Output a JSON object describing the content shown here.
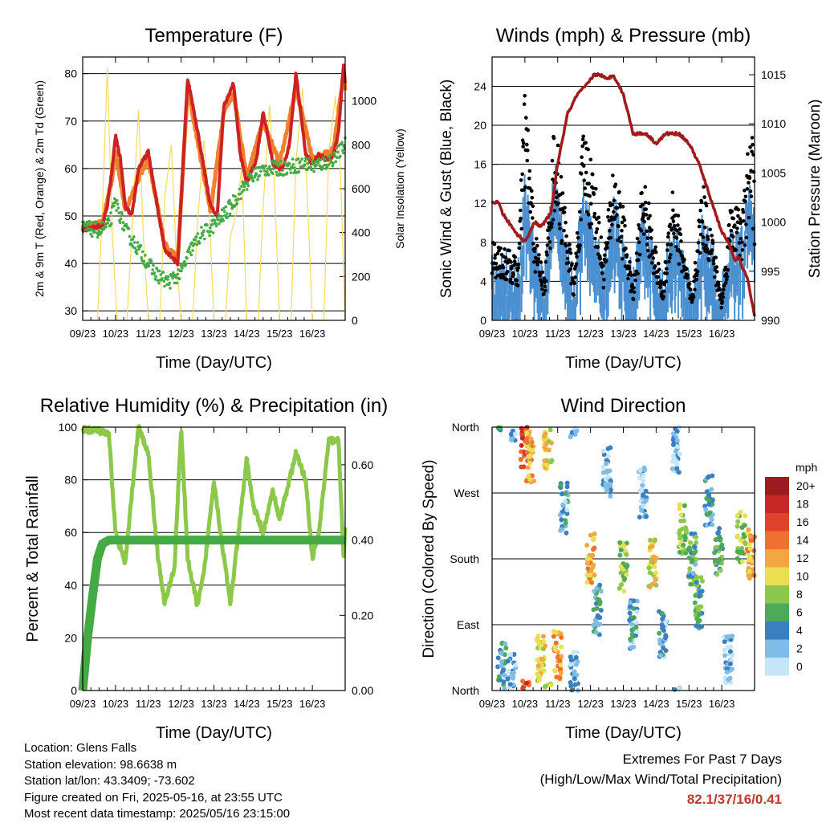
{
  "common": {
    "x_ticks": [
      "09/23",
      "10/23",
      "11/23",
      "12/23",
      "13/23",
      "14/23",
      "15/23",
      "16/23"
    ],
    "xlabel": "Time (Day/UTC)"
  },
  "chart_data": [
    {
      "id": "temperature",
      "type": "line",
      "title": "Temperature (F)",
      "xlabel": "Time (Day/UTC)",
      "ylabel": "2m & 9m T (Red, Orange) & 2m Td (Green)",
      "ylabel_right": "Solar Insolation (Yellow)",
      "ylim": [
        28,
        83.5
      ],
      "yticks": [
        30,
        40,
        50,
        60,
        70,
        80
      ],
      "ylim_right": [
        0,
        1200
      ],
      "yticks_right": [
        0,
        200,
        400,
        600,
        800,
        1000
      ],
      "x_unit": "days since 09/23",
      "series": [
        {
          "name": "2m T",
          "color": "#cc2222",
          "x": [
            0,
            0.3,
            0.6,
            0.75,
            0.9,
            1.0,
            1.15,
            1.3,
            1.5,
            1.7,
            2.0,
            2.2,
            2.5,
            2.9,
            3.05,
            3.2,
            3.5,
            3.9,
            4.1,
            4.3,
            4.6,
            4.8,
            5.0,
            5.3,
            5.5,
            5.8,
            6.0,
            6.1,
            6.3,
            6.5,
            6.8,
            7.0,
            7.2,
            7.4,
            7.55,
            7.65,
            7.8,
            7.95,
            8.0
          ],
          "y": [
            47,
            47.5,
            48,
            52,
            60,
            67,
            62,
            52,
            50,
            60,
            63.5,
            55,
            43,
            40,
            60,
            79,
            68,
            52,
            50,
            73,
            78,
            63,
            57,
            62,
            72,
            61,
            60,
            60,
            65,
            80,
            63,
            61,
            63,
            62,
            62,
            63,
            68,
            82,
            78
          ]
        },
        {
          "name": "9m T",
          "color": "#f08030",
          "x": [
            0,
            0.6,
            0.9,
            1.0,
            1.3,
            1.7,
            2.0,
            2.5,
            2.9,
            3.2,
            3.9,
            4.3,
            4.6,
            5.0,
            5.5,
            6.0,
            6.5,
            7.0,
            7.65,
            7.95,
            8.0
          ],
          "y": [
            47.5,
            48.5,
            58,
            64,
            51,
            58,
            62,
            44,
            41,
            77,
            51,
            72,
            76,
            58,
            70,
            61,
            77,
            62,
            64,
            80,
            77
          ]
        },
        {
          "name": "2m Td",
          "color": "#44aa44",
          "x": [
            0,
            0.5,
            0.8,
            1.0,
            1.3,
            1.6,
            1.8,
            2.0,
            2.2,
            2.4,
            2.6,
            2.8,
            3.0,
            3.3,
            3.6,
            4.0,
            4.4,
            4.8,
            5.0,
            5.3,
            5.6,
            6.0,
            6.4,
            6.8,
            7.0,
            7.3,
            7.6,
            7.9,
            8.0
          ],
          "y": [
            47.5,
            47,
            48,
            53,
            47,
            44,
            42,
            40,
            38,
            37,
            36,
            37,
            38,
            43,
            46,
            48,
            51,
            55,
            57,
            59,
            60,
            60,
            60.5,
            61,
            60.5,
            61,
            62,
            64,
            65
          ]
        },
        {
          "name": "Solar Insolation",
          "color": "#f5dc5a",
          "axis": "right",
          "x": [
            0.45,
            0.6,
            0.75,
            0.9,
            1.05,
            1.35,
            1.5,
            1.7,
            1.85,
            2.0,
            2.35,
            2.5,
            2.7,
            2.85,
            3.0,
            3.35,
            3.5,
            3.7,
            3.85,
            4.0,
            4.35,
            4.5,
            4.7,
            4.85,
            5.0,
            5.35,
            5.5,
            5.7,
            5.85,
            6.0,
            6.35,
            6.5,
            6.7,
            6.85,
            7.0,
            7.35,
            7.5,
            7.7,
            7.85,
            8.0
          ],
          "y": [
            0,
            500,
            1150,
            400,
            0,
            0,
            400,
            960,
            380,
            0,
            0,
            560,
            800,
            300,
            0,
            0,
            450,
            820,
            520,
            0,
            0,
            380,
            500,
            700,
            0,
            0,
            520,
            980,
            600,
            0,
            0,
            720,
            1060,
            560,
            0,
            0,
            760,
            1020,
            700,
            0
          ]
        }
      ]
    },
    {
      "id": "winds",
      "type": "scatter",
      "title": "Winds (mph) & Pressure (mb)",
      "xlabel": "Time (Day/UTC)",
      "ylabel": "Sonic Wind & Gust (Blue, Black)",
      "ylabel_right": "Station Pressure (Maroon)",
      "ylim": [
        0,
        27
      ],
      "yticks": [
        0,
        4,
        8,
        12,
        16,
        20,
        24
      ],
      "ylim_right": [
        990,
        1016.8
      ],
      "yticks_right": [
        990,
        995,
        1000,
        1005,
        1010,
        1015
      ],
      "x_unit": "days since 09/23",
      "series": [
        {
          "name": "Sonic Wind",
          "color": "#4a90d0",
          "x": [
            0,
            0.5,
            0.8,
            1.0,
            1.3,
            1.6,
            1.9,
            2.2,
            2.5,
            2.8,
            3.1,
            3.4,
            3.7,
            4.0,
            4.3,
            4.6,
            4.9,
            5.2,
            5.5,
            5.8,
            6.1,
            6.4,
            6.7,
            7.0,
            7.3,
            7.6,
            7.9,
            8.0
          ],
          "y": [
            4,
            4,
            3,
            12,
            5,
            2,
            14,
            7,
            2,
            12,
            8,
            3,
            10,
            6,
            2,
            9,
            5,
            2,
            8,
            4,
            1,
            8,
            5,
            1,
            7,
            6,
            12,
            8
          ]
        },
        {
          "name": "Gust",
          "color": "#000000",
          "x": [
            0,
            0.5,
            0.8,
            1.0,
            1.3,
            1.6,
            1.9,
            2.2,
            2.5,
            2.8,
            3.1,
            3.4,
            3.7,
            4.0,
            4.3,
            4.6,
            4.9,
            5.2,
            5.5,
            5.8,
            6.1,
            6.4,
            6.7,
            7.0,
            7.3,
            7.6,
            7.9,
            8.0
          ],
          "y": [
            8,
            7,
            6,
            24,
            9,
            4,
            20,
            12,
            4,
            20,
            15,
            6,
            16,
            11,
            3,
            15,
            9,
            3,
            14,
            8,
            2,
            14,
            9,
            2,
            13,
            10,
            20,
            14
          ]
        },
        {
          "name": "Station Pressure",
          "color": "#a01c1c",
          "axis": "right",
          "x": [
            0,
            0.2,
            0.3,
            0.7,
            1.0,
            1.3,
            1.5,
            1.8,
            2.0,
            2.3,
            2.6,
            2.9,
            3.1,
            3.3,
            3.5,
            3.7,
            4.0,
            4.3,
            4.7,
            5.0,
            5.3,
            5.7,
            6.0,
            6.3,
            6.6,
            6.8,
            7.0,
            7.2,
            7.4,
            7.5,
            7.8,
            8.0
          ],
          "y": [
            1002,
            1002,
            1001,
            999,
            998,
            1000,
            999.5,
            1001,
            1006,
            1011,
            1013,
            1014,
            1015,
            1015,
            1014.5,
            1015,
            1013,
            1009,
            1009,
            1008,
            1009,
            1009,
            1008,
            1006,
            1003,
            1001,
            999,
            998,
            996,
            996.5,
            994,
            990.5
          ]
        }
      ]
    },
    {
      "id": "humidity",
      "type": "line",
      "title": "Relative Humidity (%) & Precipitation (in)",
      "xlabel": "Time (Day/UTC)",
      "ylabel": "Percent & Total Rainfall",
      "ylim": [
        0,
        100
      ],
      "yticks": [
        0,
        20,
        40,
        60,
        80,
        100
      ],
      "ylim_right": [
        0,
        0.7
      ],
      "yticks_right": [
        "0.00",
        "0.20",
        "0.40",
        "0.60"
      ],
      "x_unit": "days since 09/23",
      "series": [
        {
          "name": "Relative Humidity",
          "color": "#8cc84c",
          "x": [
            0,
            0.4,
            0.8,
            1.0,
            1.3,
            1.5,
            1.7,
            2.0,
            2.3,
            2.5,
            2.8,
            3.0,
            3.2,
            3.5,
            3.7,
            4.0,
            4.2,
            4.5,
            4.8,
            5.0,
            5.2,
            5.5,
            5.8,
            6.0,
            6.2,
            6.5,
            6.8,
            7.0,
            7.2,
            7.5,
            7.8,
            7.95,
            8.0
          ],
          "y": [
            99,
            99,
            97,
            60,
            48,
            75,
            100,
            90,
            50,
            33,
            47,
            100,
            50,
            32,
            45,
            80,
            60,
            33,
            65,
            88,
            70,
            60,
            76,
            65,
            75,
            90,
            80,
            50,
            60,
            95,
            95,
            50,
            62
          ]
        },
        {
          "name": "Total Precipitation",
          "color": "#44aa44",
          "axis": "right",
          "x": [
            0,
            0.15,
            0.3,
            0.45,
            0.6,
            0.8,
            8.0
          ],
          "y": [
            0,
            0.14,
            0.25,
            0.35,
            0.39,
            0.4,
            0.4
          ]
        }
      ]
    },
    {
      "id": "direction",
      "type": "scatter",
      "title": "Wind Direction",
      "xlabel": "Time (Day/UTC)",
      "ylabel": "Direction (Colored By Speed)",
      "yticks": [
        "North",
        "East",
        "South",
        "West",
        "North"
      ],
      "ylim": [
        0,
        360
      ],
      "x_unit": "days since 09/23",
      "legend": {
        "title": "mph",
        "labels": [
          "20+",
          "18",
          "16",
          "14",
          "12",
          "10",
          "8",
          "6",
          "4",
          "2",
          "0"
        ],
        "colors": [
          "#9b1c1c",
          "#c62828",
          "#e0432b",
          "#f07030",
          "#f5a640",
          "#e8e050",
          "#8cc84c",
          "#4caa5a",
          "#3a80c0",
          "#80bce8",
          "#c5e5f8"
        ],
        "placement": "right"
      },
      "clusters": [
        {
          "x": 0.3,
          "dir": 30,
          "speed": 4
        },
        {
          "x": 0.6,
          "dir": 15,
          "speed": 2
        },
        {
          "x": 1.0,
          "dir": 340,
          "speed": 16
        },
        {
          "x": 1.15,
          "dir": 320,
          "speed": 12
        },
        {
          "x": 1.5,
          "dir": 40,
          "speed": 10
        },
        {
          "x": 1.7,
          "dir": 335,
          "speed": 10
        },
        {
          "x": 2.0,
          "dir": 50,
          "speed": 12
        },
        {
          "x": 2.2,
          "dir": 250,
          "speed": 3
        },
        {
          "x": 2.5,
          "dir": 20,
          "speed": 2
        },
        {
          "x": 3.0,
          "dir": 180,
          "speed": 12
        },
        {
          "x": 3.2,
          "dir": 110,
          "speed": 4
        },
        {
          "x": 3.5,
          "dir": 300,
          "speed": 2
        },
        {
          "x": 4.0,
          "dir": 170,
          "speed": 8
        },
        {
          "x": 4.3,
          "dir": 90,
          "speed": 3
        },
        {
          "x": 4.6,
          "dir": 270,
          "speed": 2
        },
        {
          "x": 4.9,
          "dir": 175,
          "speed": 10
        },
        {
          "x": 5.2,
          "dir": 80,
          "speed": 3
        },
        {
          "x": 5.6,
          "dir": 330,
          "speed": 2
        },
        {
          "x": 5.8,
          "dir": 220,
          "speed": 8
        },
        {
          "x": 6.1,
          "dir": 180,
          "speed": 5
        },
        {
          "x": 6.3,
          "dir": 120,
          "speed": 6
        },
        {
          "x": 6.6,
          "dir": 260,
          "speed": 4
        },
        {
          "x": 6.9,
          "dir": 190,
          "speed": 6
        },
        {
          "x": 7.2,
          "dir": 40,
          "speed": 2
        },
        {
          "x": 7.6,
          "dir": 210,
          "speed": 8
        },
        {
          "x": 7.9,
          "dir": 185,
          "speed": 12
        }
      ]
    }
  ],
  "station": {
    "location": "Location: Glens Falls",
    "elevation": "Station elevation: 98.6638 m",
    "latlon": "Station lat/lon: 43.3409; -73.602",
    "created": "Figure created on Fri, 2025-05-16, at 23:55 UTC",
    "latest": "Most recent data timestamp: 2025/05/16 23:15:00"
  },
  "extremes": {
    "title": "Extremes For Past 7 Days",
    "subtitle": "(High/Low/Max Wind/Total Precipitation)",
    "values": "82.1/37/16/0.41"
  }
}
